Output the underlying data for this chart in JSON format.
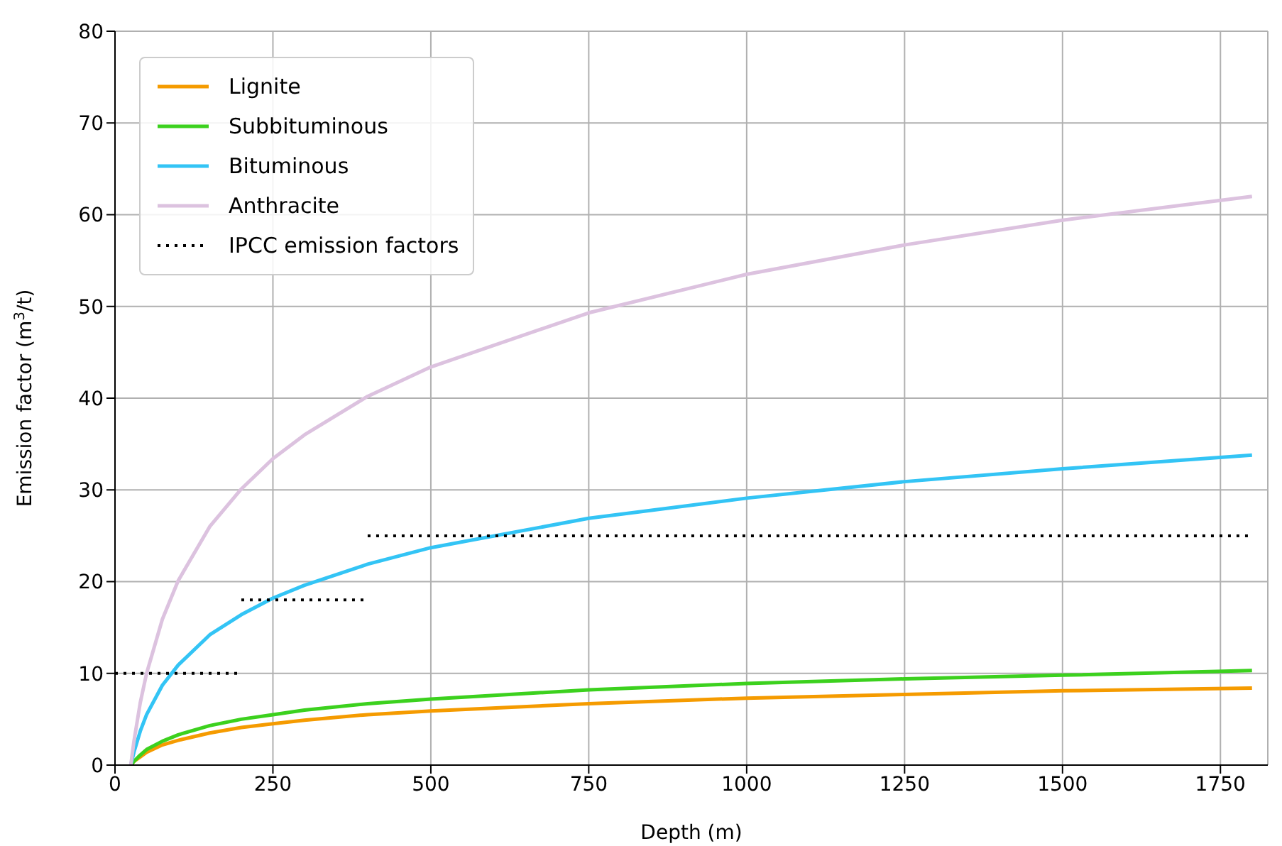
{
  "chart_data": {
    "type": "line",
    "xlabel": "Depth (m)",
    "ylabel": "Emission factor (m$^{3}$/t)",
    "xlim": [
      0,
      1825
    ],
    "ylim": [
      0,
      80
    ],
    "xticks": [
      0,
      250,
      500,
      750,
      1000,
      1250,
      1500,
      1750
    ],
    "yticks": [
      0,
      10,
      20,
      30,
      40,
      50,
      60,
      70,
      80
    ],
    "grid": true,
    "legend": "top left",
    "marker": "none",
    "x": [
      25,
      30,
      40,
      50,
      75,
      100,
      150,
      200,
      250,
      300,
      400,
      500,
      750,
      1000,
      1250,
      1500,
      1800
    ],
    "series": [
      {
        "name": "Lignite",
        "color": "#f59b00",
        "line_style": "solid",
        "values": [
          0,
          0.4,
          0.9,
          1.4,
          2.2,
          2.7,
          3.5,
          4.1,
          4.5,
          4.9,
          5.5,
          5.9,
          6.7,
          7.3,
          7.7,
          8.1,
          8.4
        ]
      },
      {
        "name": "Subbituminous",
        "color": "#3cd11e",
        "line_style": "solid",
        "values": [
          0,
          0.4,
          1.1,
          1.7,
          2.6,
          3.3,
          4.3,
          5,
          5.5,
          6,
          6.7,
          7.2,
          8.2,
          8.9,
          9.4,
          9.8,
          10.3
        ]
      },
      {
        "name": "Bituminous",
        "color": "#33c4f5",
        "line_style": "solid",
        "values": [
          0,
          1.4,
          3.7,
          5.5,
          8.7,
          10.9,
          14.2,
          16.4,
          18.2,
          19.6,
          21.9,
          23.7,
          26.9,
          29.1,
          30.9,
          32.3,
          33.8
        ]
      },
      {
        "name": "Anthracite",
        "color": "#dcc2df",
        "line_style": "solid",
        "values": [
          0,
          2.6,
          6.8,
          10,
          15.9,
          20.1,
          26,
          30.1,
          33.4,
          36,
          40.2,
          43.4,
          49.3,
          53.5,
          56.7,
          59.4,
          62
        ]
      },
      {
        "name": "IPCC emission factors",
        "color": "#000000",
        "line_style": "dotted",
        "x": [
          0,
          200,
          null,
          200,
          400,
          null,
          400,
          1800
        ],
        "values": [
          10,
          10,
          null,
          18,
          18,
          null,
          25,
          25
        ]
      }
    ]
  }
}
